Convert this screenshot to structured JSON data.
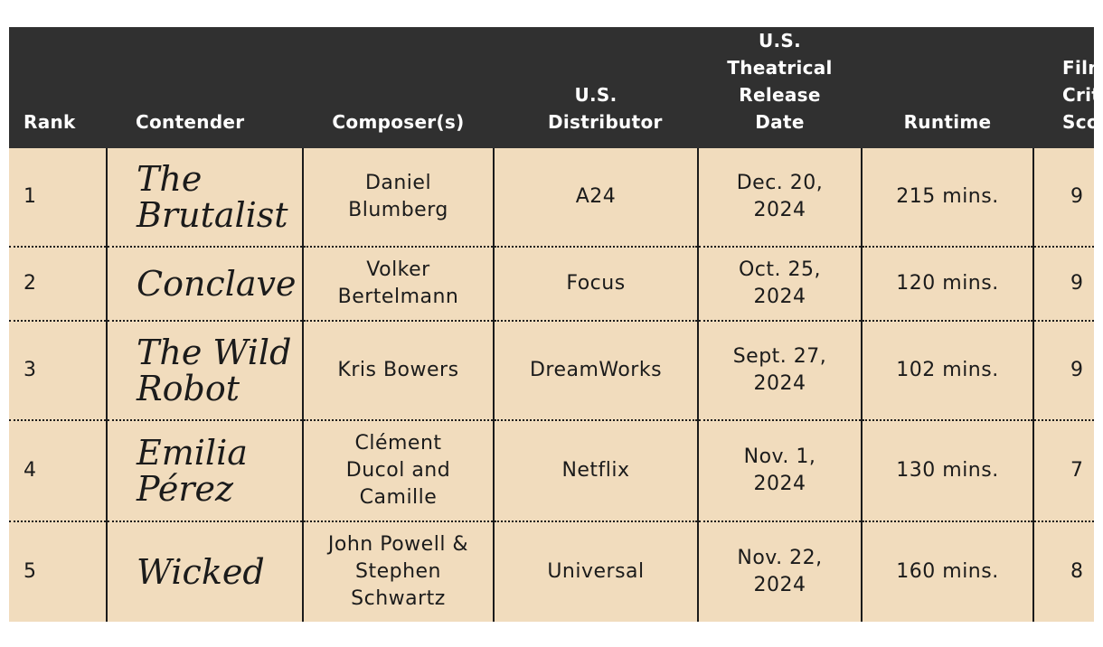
{
  "headers": {
    "rank": "Rank",
    "contender": "Contender",
    "composers": "Composer(s)",
    "distributor": "U.S. Distributor",
    "release": "U.S. Theatrical Release Date",
    "runtime": "Runtime",
    "score": "Film Critics Score"
  },
  "rows": [
    {
      "rank": "1",
      "contender": "The Brutalist",
      "composers": "Daniel Blumberg",
      "distributor": "A24",
      "release": "Dec. 20, 2024",
      "runtime": "215 mins.",
      "score": "9"
    },
    {
      "rank": "2",
      "contender": "Conclave",
      "composers": "Volker Bertelmann",
      "distributor": "Focus",
      "release": "Oct. 25, 2024",
      "runtime": "120 mins.",
      "score": "9"
    },
    {
      "rank": "3",
      "contender": "The Wild Robot",
      "composers": "Kris Bowers",
      "distributor": "DreamWorks",
      "release": "Sept. 27, 2024",
      "runtime": "102 mins.",
      "score": "9"
    },
    {
      "rank": "4",
      "contender": "Emilia Pérez",
      "composers": "Clément Ducol and Camille",
      "distributor": "Netflix",
      "release": "Nov. 1, 2024",
      "runtime": "130 mins.",
      "score": "7"
    },
    {
      "rank": "5",
      "contender": "Wicked",
      "composers": "John Powell & Stephen Schwartz",
      "distributor": "Universal",
      "release": "Nov. 22, 2024",
      "runtime": "160 mins.",
      "score": "8"
    }
  ],
  "colors": {
    "header_bg": "#303030",
    "row_bg": "#f1dcbd",
    "text": "#1b1b1b"
  }
}
